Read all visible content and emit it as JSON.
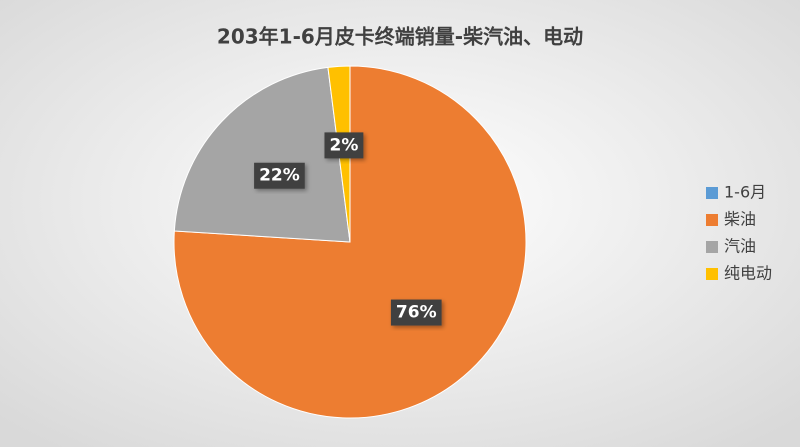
{
  "chart_data": {
    "type": "pie",
    "title": "203年1-6月皮卡终端销量-柴汽油、电动",
    "categories": [
      "1-6月",
      "柴油",
      "汽油",
      "纯电动"
    ],
    "values": [
      0,
      76,
      22,
      2
    ],
    "value_labels": [
      null,
      "76%",
      "22%",
      "2%"
    ],
    "colors": [
      "#5b9bd5",
      "#ed7d31",
      "#a5a5a5",
      "#ffc000"
    ],
    "legend": "right"
  }
}
